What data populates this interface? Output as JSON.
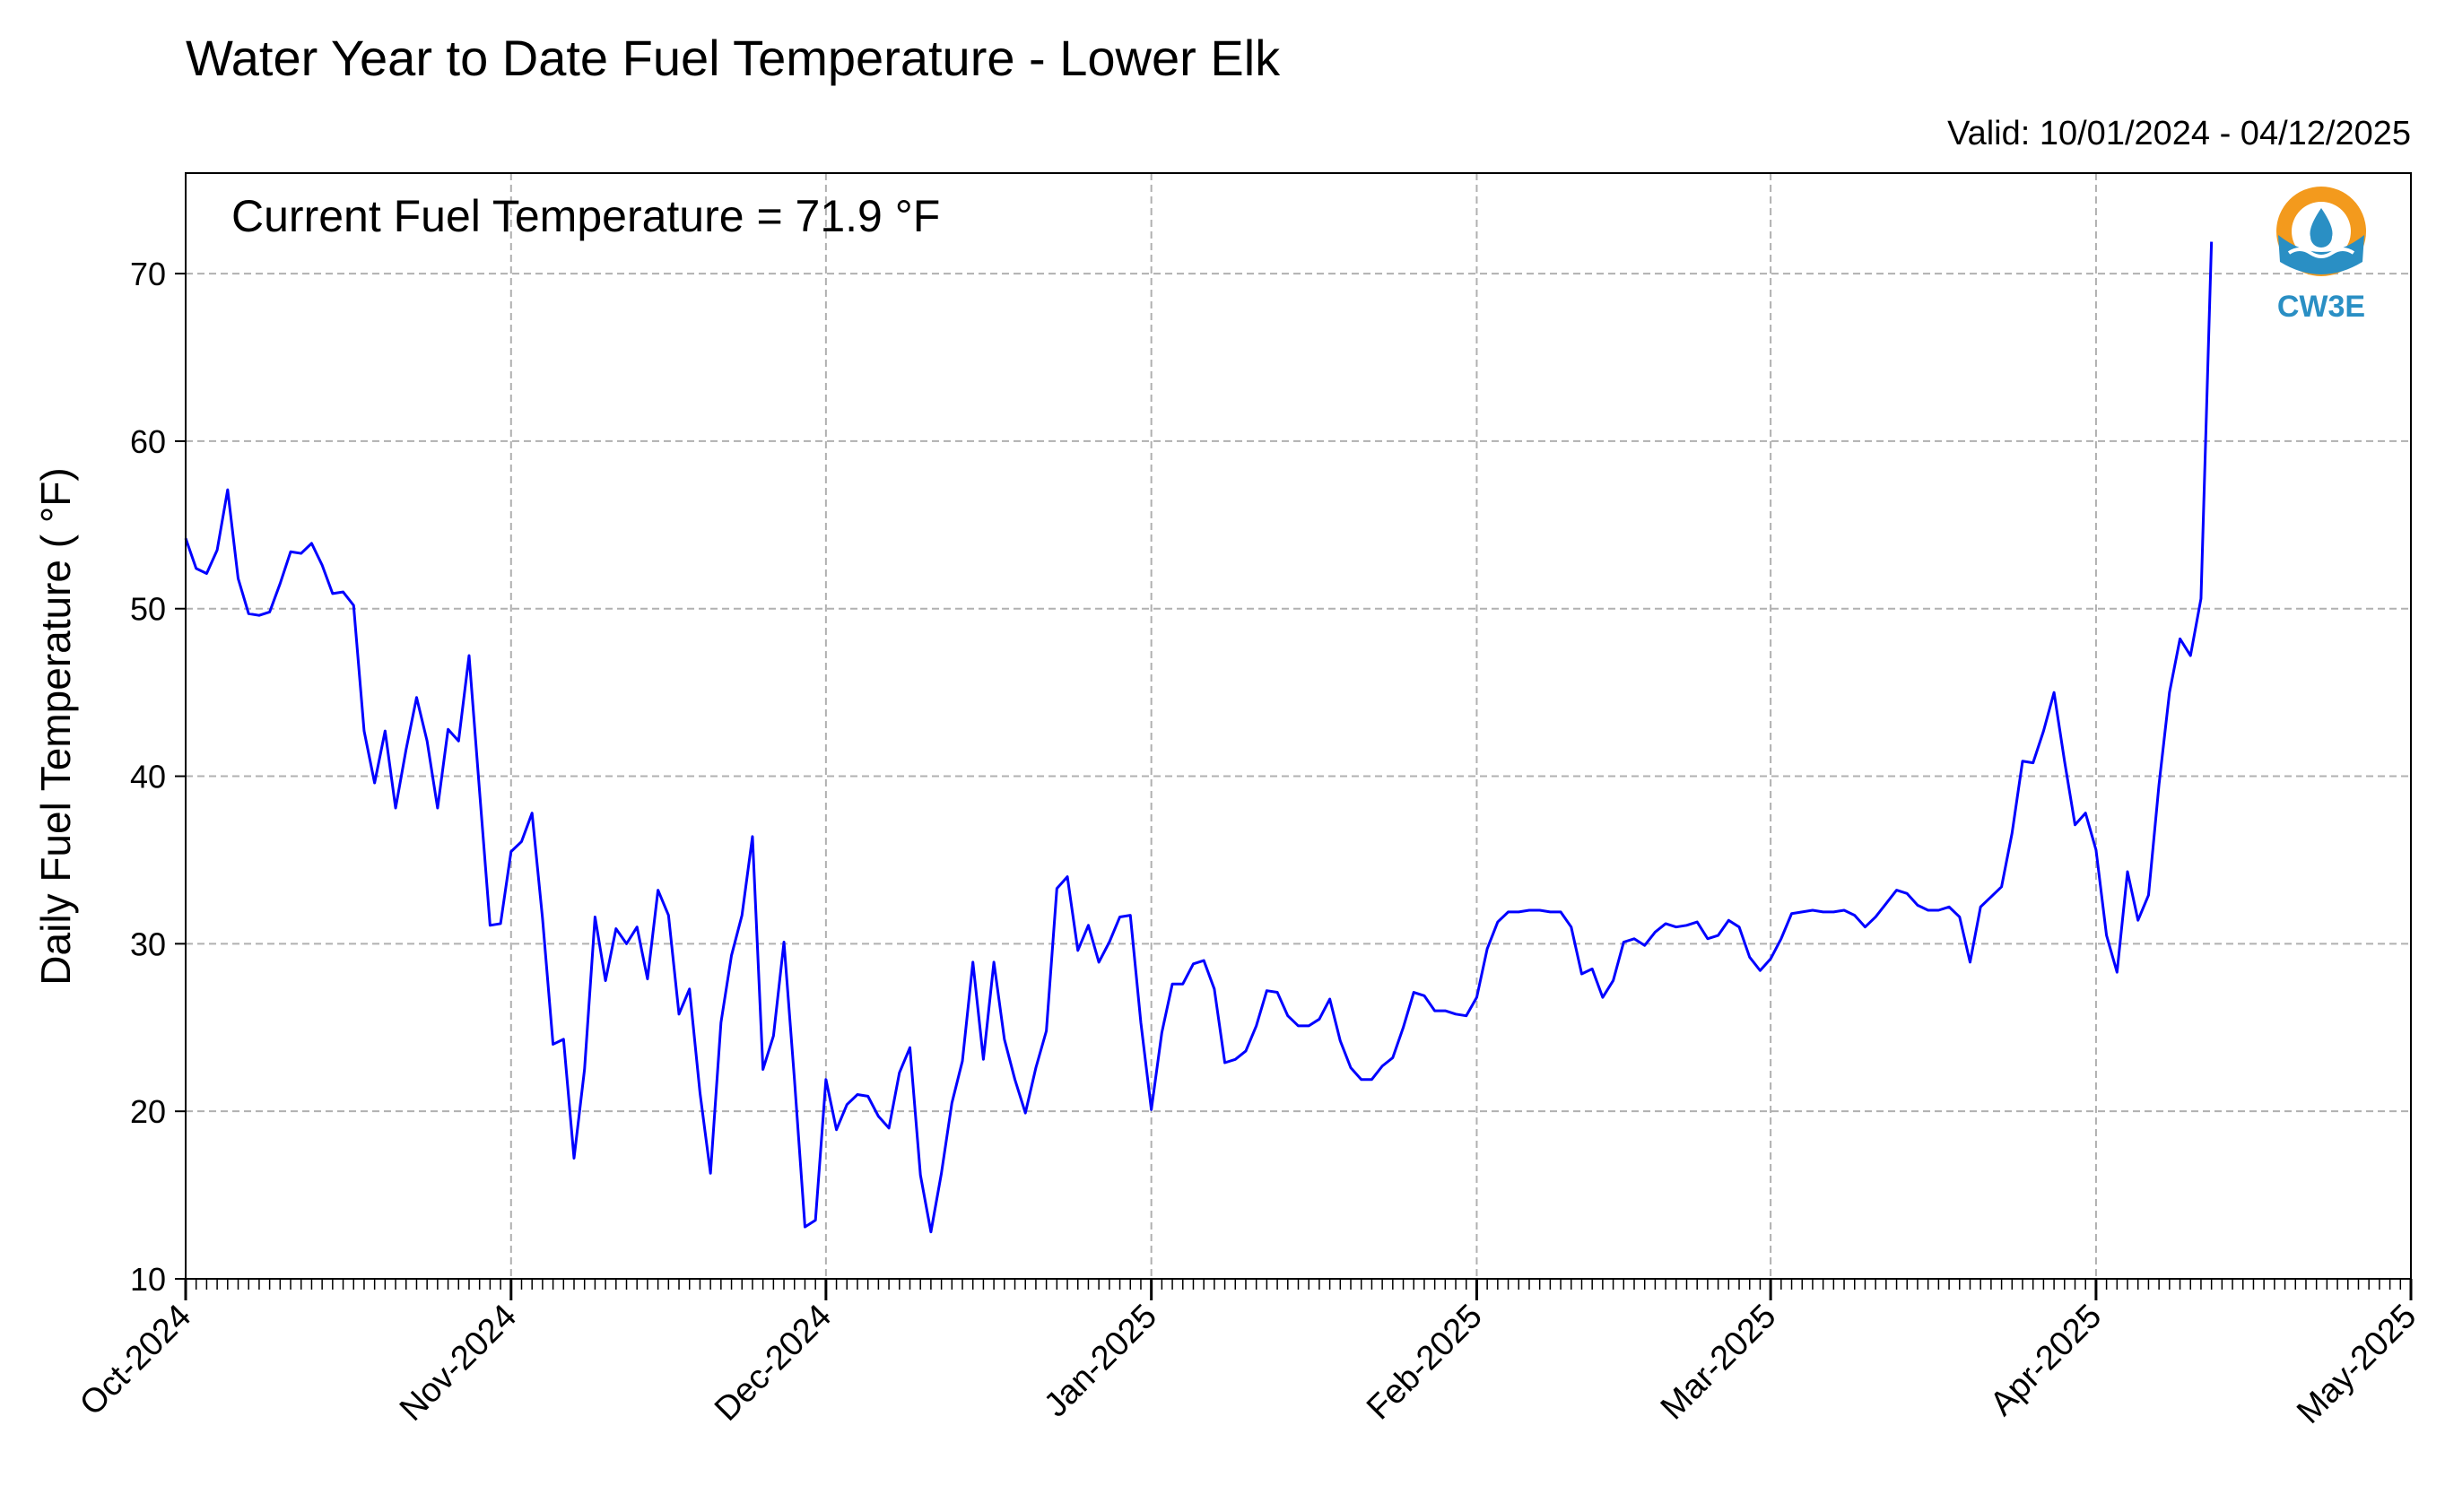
{
  "chart_data": {
    "type": "line",
    "title": "Water Year to Date Fuel Temperature - Lower Elk",
    "subtitle": "Valid: 10/01/2024 - 04/12/2025",
    "annotation": "Current Fuel Temperature = 71.9  °F",
    "xlabel": "",
    "ylabel": "Daily Fuel Temperature ( °F)",
    "xlim": [
      "2024-10-01",
      "2025-05-01"
    ],
    "ylim": [
      10,
      76
    ],
    "grid": true,
    "ytick_labels": [
      "10",
      "20",
      "30",
      "40",
      "50",
      "60",
      "70"
    ],
    "xtick_labels": [
      "Oct-2024",
      "Nov-2024",
      "Dec-2024",
      "Jan-2025",
      "Feb-2025",
      "Mar-2025",
      "Apr-2025",
      "May-2025"
    ],
    "line_color": "#0000ff",
    "series": [
      {
        "x_start": "2024-10-01",
        "x_step": "1 day",
        "values": [
          54.2,
          52.4,
          52.1,
          53.5,
          57.1,
          51.8,
          49.7,
          49.6,
          49.8,
          51.5,
          53.4,
          53.3,
          53.9,
          52.6,
          50.9,
          51.0,
          50.2,
          42.7,
          39.6,
          42.7,
          38.1,
          41.6,
          44.7,
          42.1,
          38.1,
          42.8,
          42.1,
          47.2,
          39.1,
          31.1,
          31.2,
          35.5,
          36.1,
          37.8,
          31.5,
          24.0,
          24.3,
          17.2,
          22.5,
          31.6,
          27.8,
          30.9,
          30.0,
          31.0,
          27.9,
          33.2,
          31.7,
          25.8,
          27.3,
          21.1,
          16.3,
          25.3,
          29.3,
          31.7,
          36.4,
          22.5,
          24.5,
          30.1,
          21.9,
          13.1,
          13.5,
          21.9,
          18.9,
          20.4,
          21.0,
          20.9,
          19.7,
          19.0,
          22.3,
          23.8,
          16.2,
          12.8,
          16.3,
          20.5,
          23.0,
          28.9,
          23.1,
          28.9,
          24.3,
          21.9,
          19.9,
          22.6,
          24.8,
          33.3,
          34.0,
          29.6,
          31.1,
          28.9,
          30.1,
          31.6,
          31.7,
          25.3,
          20.1,
          24.7,
          27.6,
          27.6,
          28.8,
          29.0,
          27.3,
          22.9,
          23.1,
          23.6,
          25.1,
          27.2,
          27.1,
          25.7,
          25.1,
          25.1,
          25.5,
          26.7,
          24.2,
          22.6,
          21.9,
          21.9,
          22.7,
          23.2,
          25.0,
          27.1,
          26.9,
          26.0,
          26.0,
          25.8,
          25.7,
          26.8,
          29.7,
          31.3,
          31.9,
          31.9,
          32.0,
          32.0,
          31.9,
          31.9,
          31.0,
          28.2,
          28.5,
          26.8,
          27.8,
          30.1,
          30.3,
          29.9,
          30.7,
          31.2,
          31.0,
          31.1,
          31.3,
          30.3,
          30.5,
          31.4,
          31.0,
          29.2,
          28.4,
          29.1,
          30.3,
          31.8,
          31.9,
          32.0,
          31.9,
          31.9,
          32.0,
          31.7,
          31.0,
          31.6,
          32.4,
          33.2,
          33.0,
          32.3,
          32.0,
          32.0,
          32.2,
          31.6,
          28.9,
          32.2,
          32.8,
          33.4,
          36.6,
          40.9,
          40.8,
          42.7,
          45.0,
          40.9,
          37.1,
          37.8,
          35.6,
          30.5,
          28.3,
          34.3,
          31.4,
          32.9,
          39.5,
          45.0,
          48.2,
          47.2,
          50.6,
          71.9
        ]
      }
    ]
  },
  "logo": {
    "text": "CW3E",
    "color_orange": "#f39a1d",
    "color_blue": "#2a8fc4"
  }
}
